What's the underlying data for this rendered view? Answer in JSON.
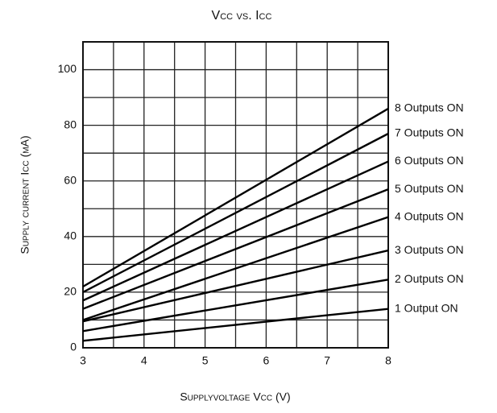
{
  "chart_data": {
    "type": "line",
    "title": "Vcc vs. Icc",
    "x_label": "Supplyvoltage Vcc (V)",
    "y_label": "Supply current  Icc (mA)",
    "x": [
      3,
      8
    ],
    "series": [
      {
        "name": "1 Output ON",
        "color": "#000000",
        "values": [
          2.5,
          14
        ]
      },
      {
        "name": "2 Outputs ON",
        "color": "#000000",
        "values": [
          6,
          24.5
        ]
      },
      {
        "name": "3 Outputs ON",
        "color": "#000000",
        "values": [
          9.5,
          35
        ]
      },
      {
        "name": "4 Outputs ON",
        "color": "#000000",
        "values": [
          10,
          47
        ]
      },
      {
        "name": "5 Outputs ON",
        "color": "#000000",
        "values": [
          14,
          57
        ]
      },
      {
        "name": "6 Outputs ON",
        "color": "#000000",
        "values": [
          17,
          67
        ]
      },
      {
        "name": "7 Outputs ON",
        "color": "#000000",
        "values": [
          20,
          77
        ]
      },
      {
        "name": "8 Outputs ON",
        "color": "#000000",
        "values": [
          22,
          86
        ]
      }
    ],
    "xlim": [
      3,
      8
    ],
    "xticks": [
      3,
      4,
      5,
      6,
      7,
      8
    ],
    "xminor": [
      3.5,
      4.5,
      5.5,
      6.5,
      7.5
    ],
    "ylim": [
      0,
      110
    ],
    "yticks": [
      0,
      20,
      40,
      60,
      80,
      100
    ],
    "yminor": [
      10,
      30,
      50,
      70,
      90
    ],
    "grid": true
  }
}
